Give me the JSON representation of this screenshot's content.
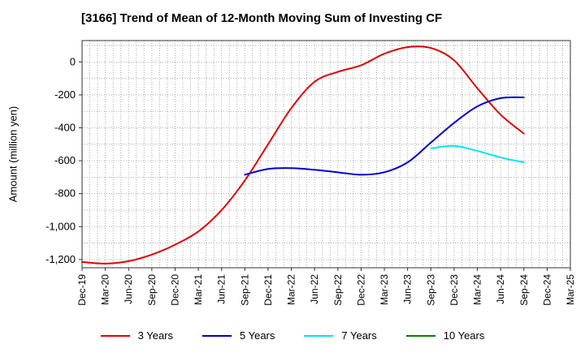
{
  "chart_data": {
    "type": "line",
    "title": "[3166]  Trend of Mean of 12-Month Moving Sum of Investing CF",
    "ylabel": "Amount (million yen)",
    "xlabel": "",
    "ylim": [
      -1250,
      130
    ],
    "yticks": [
      0,
      -200,
      -400,
      -600,
      -800,
      -1000,
      -1200
    ],
    "ytick_labels": [
      "0",
      "-200",
      "-400",
      "-600",
      "-800",
      "-1,000",
      "-1,200"
    ],
    "x_start": "Dec-19",
    "x_end": "Mar-25",
    "xtick_labels": [
      "Dec-19",
      "Mar-20",
      "Jun-20",
      "Sep-20",
      "Dec-20",
      "Mar-21",
      "Jun-21",
      "Sep-21",
      "Dec-21",
      "Mar-22",
      "Jun-22",
      "Sep-22",
      "Dec-22",
      "Mar-23",
      "Jun-23",
      "Sep-23",
      "Dec-23",
      "Mar-24",
      "Jun-24",
      "Sep-24",
      "Dec-24",
      "Mar-25"
    ],
    "grid": true,
    "legend_position": "bottom",
    "series": [
      {
        "name": "3 Years",
        "color": "#e00000",
        "x": [
          "Dec-19",
          "Mar-20",
          "Jun-20",
          "Sep-20",
          "Dec-20",
          "Mar-21",
          "Jun-21",
          "Sep-21",
          "Dec-21",
          "Mar-22",
          "Jun-22",
          "Sep-22",
          "Dec-22",
          "Mar-23",
          "Jun-23",
          "Sep-23",
          "Dec-23",
          "Mar-24",
          "Jun-24",
          "Sep-24"
        ],
        "values": [
          -1215,
          -1225,
          -1210,
          -1170,
          -1110,
          -1030,
          -900,
          -720,
          -500,
          -280,
          -120,
          -60,
          -20,
          50,
          90,
          85,
          10,
          -160,
          -320,
          -435
        ]
      },
      {
        "name": "5 Years",
        "color": "#0000cc",
        "x": [
          "Sep-21",
          "Dec-21",
          "Mar-22",
          "Jun-22",
          "Sep-22",
          "Dec-22",
          "Mar-23",
          "Jun-23",
          "Sep-23",
          "Dec-23",
          "Mar-24",
          "Jun-24",
          "Sep-24"
        ],
        "values": [
          -685,
          -650,
          -645,
          -655,
          -670,
          -685,
          -670,
          -610,
          -490,
          -370,
          -270,
          -220,
          -215
        ]
      },
      {
        "name": "7 Years",
        "color": "#00e5ee",
        "x": [
          "Sep-23",
          "Dec-23",
          "Mar-24",
          "Jun-24",
          "Sep-24"
        ],
        "values": [
          -525,
          -510,
          -540,
          -580,
          -610
        ]
      },
      {
        "name": "10 Years",
        "color": "#008000",
        "x": [],
        "values": []
      }
    ]
  }
}
